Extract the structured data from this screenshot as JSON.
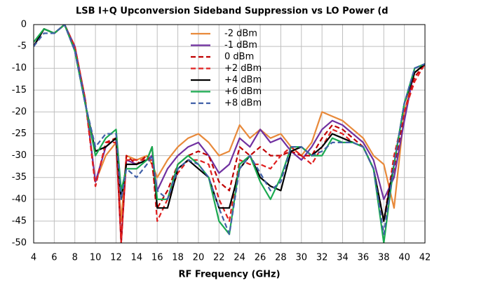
{
  "chart_data": {
    "type": "line",
    "title": "LSB I+Q Upconversion Sideband Suppression vs LO Power (d",
    "x_label": "RF Frequency (GHz)",
    "x": [
      4,
      5,
      6,
      7,
      8,
      9,
      10,
      11,
      12,
      12.5,
      13,
      14,
      15,
      15.5,
      16,
      17,
      18,
      19,
      20,
      21,
      22,
      23,
      24,
      25,
      26,
      27,
      28,
      29,
      30,
      31,
      32,
      33,
      34,
      35,
      36,
      37,
      38,
      39,
      40,
      41,
      42
    ],
    "series": [
      {
        "name": "-2 dBm",
        "color": "#e8893a",
        "dashed": false,
        "values": [
          -5,
          -1,
          -2,
          0,
          -5,
          -17,
          -36,
          -30,
          -27,
          -45,
          -30,
          -31,
          -30,
          -32,
          -35,
          -31,
          -28,
          -26,
          -25,
          -27,
          -30,
          -29,
          -23,
          -26,
          -24,
          -26,
          -25,
          -28,
          -30,
          -27,
          -20,
          -21,
          -22,
          -24,
          -26,
          -30,
          -32,
          -42,
          -20,
          -11,
          -9
        ]
      },
      {
        "name": "-1 dBm",
        "color": "#7030a0",
        "dashed": false,
        "values": [
          -5,
          -1,
          -2,
          0,
          -5,
          -17,
          -36,
          -28,
          -26,
          -50,
          -31,
          -32,
          -31,
          -30,
          -38,
          -33,
          -30,
          -28,
          -27,
          -30,
          -34,
          -32,
          -26,
          -28,
          -24,
          -27,
          -26,
          -29,
          -31,
          -28,
          -24,
          -22,
          -23,
          -25,
          -27,
          -31,
          -40,
          -35,
          -22,
          -10,
          -9
        ]
      },
      {
        "name": "0 dBm",
        "color": "#c00000",
        "dashed": true,
        "values": [
          -5,
          -1,
          -2,
          0,
          -5,
          -17,
          -37,
          -27,
          -26,
          -50,
          -30,
          -32,
          -30,
          -32,
          -42,
          -38,
          -32,
          -30,
          -29,
          -30,
          -36,
          -38,
          -28,
          -30,
          -28,
          -30,
          -30,
          -29,
          -30,
          -30,
          -26,
          -23,
          -24,
          -26,
          -28,
          -33,
          -45,
          -33,
          -20,
          -12,
          -9
        ]
      },
      {
        "name": "+2 dBm",
        "color": "#e02020",
        "dashed": true,
        "values": [
          -5,
          -1,
          -2,
          0,
          -5,
          -17,
          -37,
          -27,
          -27,
          -50,
          -31,
          -31,
          -31,
          -31,
          -45,
          -40,
          -34,
          -31,
          -31,
          -32,
          -40,
          -45,
          -31,
          -32,
          -32,
          -33,
          -30,
          -28,
          -30,
          -32,
          -28,
          -24,
          -25,
          -27,
          -28,
          -33,
          -45,
          -30,
          -20,
          -13,
          -9
        ]
      },
      {
        "name": "+4 dBm",
        "color": "#000000",
        "dashed": false,
        "values": [
          -5,
          -1,
          -2,
          0,
          -6,
          -18,
          -29,
          -28,
          -26,
          -40,
          -32,
          -32,
          -31,
          -28,
          -42,
          -42,
          -33,
          -31,
          -33,
          -35,
          -42,
          -42,
          -33,
          -30,
          -35,
          -37,
          -38,
          -29,
          -28,
          -30,
          -28,
          -25,
          -26,
          -27,
          -28,
          -33,
          -45,
          -32,
          -18,
          -11,
          -9
        ]
      },
      {
        "name": "+6 dBm",
        "color": "#1aaa50",
        "dashed": false,
        "values": [
          -4,
          -1,
          -2,
          0,
          -6,
          -18,
          -30,
          -26,
          -24,
          -38,
          -33,
          -33,
          -31,
          -28,
          -40,
          -40,
          -32,
          -30,
          -32,
          -35,
          -45,
          -48,
          -32,
          -30,
          -36,
          -40,
          -35,
          -28,
          -28,
          -30,
          -30,
          -26,
          -27,
          -27,
          -28,
          -33,
          -50,
          -32,
          -18,
          -10,
          -9
        ]
      },
      {
        "name": "+8 dBm",
        "color": "#4060a8",
        "dashed": true,
        "values": [
          -5,
          -2,
          -2,
          0,
          -6,
          -18,
          -28,
          -25,
          -25,
          -40,
          -33,
          -35,
          -32,
          -30,
          -38,
          -40,
          -33,
          -31,
          -32,
          -35,
          -42,
          -48,
          -33,
          -30,
          -34,
          -38,
          -36,
          -28,
          -28,
          -30,
          -29,
          -27,
          -27,
          -27,
          -28,
          -33,
          -48,
          -32,
          -18,
          -10,
          -9
        ]
      }
    ],
    "xlim": [
      4,
      42
    ],
    "xticks": [
      4,
      6,
      8,
      10,
      12,
      14,
      16,
      18,
      20,
      22,
      24,
      26,
      28,
      30,
      32,
      34,
      36,
      38,
      40,
      42
    ],
    "ylim": [
      -50,
      0
    ],
    "yticks": [
      0,
      -5,
      -10,
      -15,
      -20,
      -25,
      -30,
      -35,
      -40,
      -45,
      -50
    ],
    "grid": true,
    "legend": "top"
  }
}
